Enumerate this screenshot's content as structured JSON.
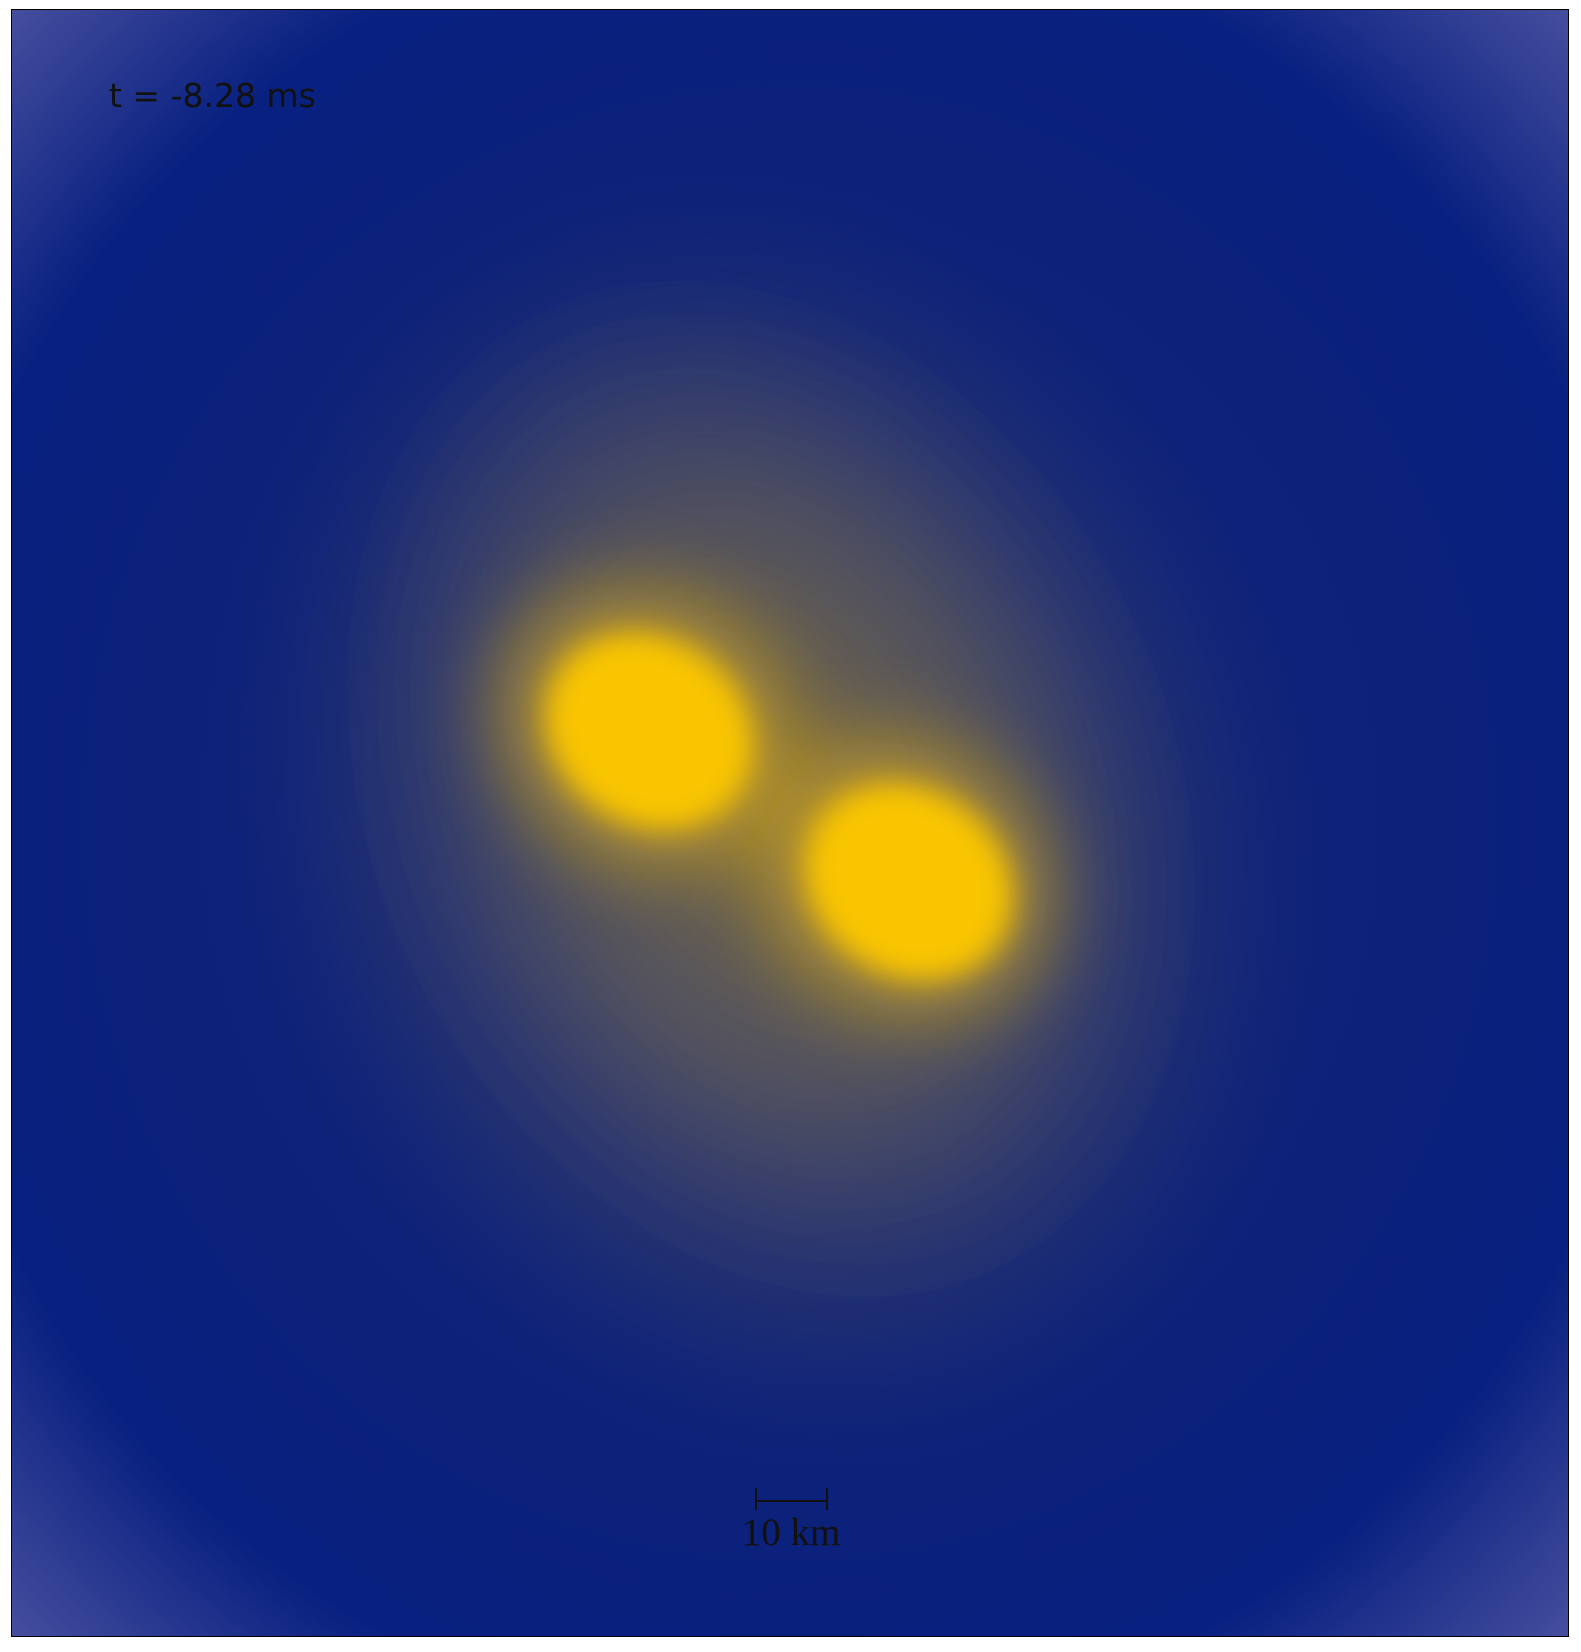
{
  "annotations": {
    "time": "t = -8.28 ms",
    "scale_bar_label": "10 km"
  },
  "colors": {
    "background_deep": "#0a1f7a",
    "background_corner": "#4a50a0",
    "halo": "#595a60",
    "star_core": "#f9c500",
    "frame": "#000000",
    "text": "#111111"
  }
}
